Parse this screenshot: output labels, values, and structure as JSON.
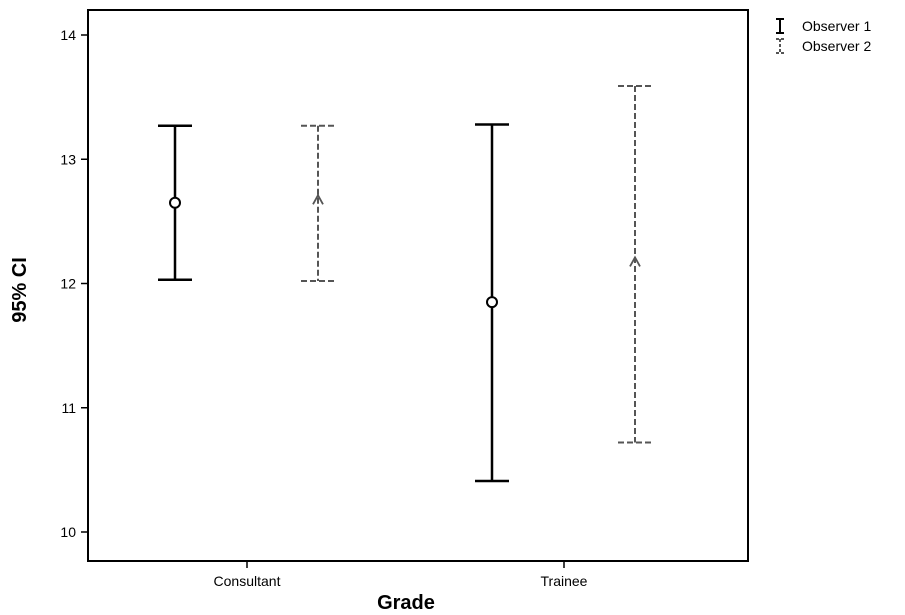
{
  "chart_data": {
    "type": "errorbar",
    "xlabel": "Grade",
    "ylabel": "95% CI",
    "categories": [
      "Consultant",
      "Trainee"
    ],
    "ylim": [
      9.8,
      14.2
    ],
    "yticks": [
      10,
      11,
      12,
      13,
      14
    ],
    "grid": false,
    "legend_position": "top-right, outside plot",
    "series": [
      {
        "name": "Observer 1",
        "color": "#000000",
        "line_style": "solid",
        "marker": "circle",
        "points": [
          {
            "category": "Consultant",
            "mean": 12.65,
            "lower": 12.03,
            "upper": 13.27
          },
          {
            "category": "Trainee",
            "mean": 11.85,
            "lower": 10.41,
            "upper": 13.28
          }
        ]
      },
      {
        "name": "Observer 2",
        "color": "#555555",
        "line_style": "dashed",
        "marker": "triangle",
        "points": [
          {
            "category": "Consultant",
            "mean": 12.67,
            "lower": 12.02,
            "upper": 13.27
          },
          {
            "category": "Trainee",
            "mean": 12.17,
            "lower": 10.72,
            "upper": 13.59
          }
        ]
      }
    ]
  }
}
